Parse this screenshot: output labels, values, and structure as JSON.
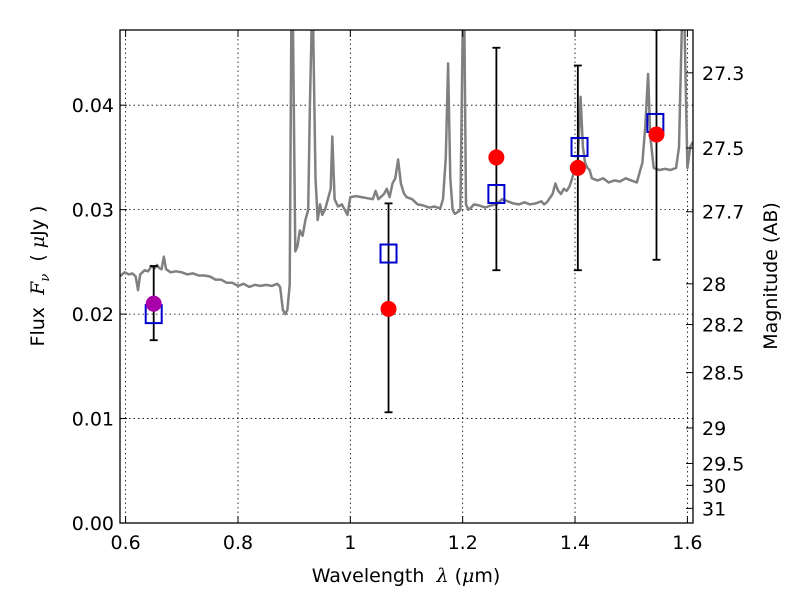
{
  "chart_data": {
    "type": "scatter",
    "xlabel": "Wavelength  λ (μm)",
    "ylabel": "Flux  Fν  ( μJy )",
    "y2label": "Magnitude (AB)",
    "xlim": [
      0.59,
      1.61
    ],
    "ylim": [
      0.0,
      0.0472
    ],
    "grid": true,
    "x_ticks": [
      0.6,
      0.8,
      1.0,
      1.2,
      1.4,
      1.6
    ],
    "x_tick_labels": [
      "0.6",
      "0.8",
      "1",
      "1.2",
      "1.4",
      "1.6"
    ],
    "y_ticks": [
      0.0,
      0.01,
      0.02,
      0.03,
      0.04
    ],
    "y_tick_labels": [
      "0.00",
      "0.01",
      "0.02",
      "0.03",
      "0.04"
    ],
    "mag_ticks": [
      {
        "label": "27.3",
        "flux": 0.0431
      },
      {
        "label": "27.5",
        "flux": 0.0359
      },
      {
        "label": "27.7",
        "flux": 0.0298
      },
      {
        "label": "28",
        "flux": 0.0229
      },
      {
        "label": "28.2",
        "flux": 0.019
      },
      {
        "label": "28.5",
        "flux": 0.0144
      },
      {
        "label": "29",
        "flux": 0.0091
      },
      {
        "label": "29.5",
        "flux": 0.0057
      },
      {
        "label": "30",
        "flux": 0.0036
      },
      {
        "label": "31",
        "flux": 0.0014
      }
    ],
    "series": [
      {
        "kind": "line",
        "color": "#808080",
        "points": [
          [
            0.59,
            0.0236
          ],
          [
            0.598,
            0.024
          ],
          [
            0.606,
            0.0238
          ],
          [
            0.612,
            0.0239
          ],
          [
            0.618,
            0.0236
          ],
          [
            0.622,
            0.0223
          ],
          [
            0.626,
            0.0238
          ],
          [
            0.634,
            0.0242
          ],
          [
            0.64,
            0.0241
          ],
          [
            0.646,
            0.0246
          ],
          [
            0.652,
            0.0244
          ],
          [
            0.656,
            0.0247
          ],
          [
            0.66,
            0.0244
          ],
          [
            0.664,
            0.0243
          ],
          [
            0.668,
            0.0255
          ],
          [
            0.672,
            0.0243
          ],
          [
            0.68,
            0.024
          ],
          [
            0.69,
            0.0241
          ],
          [
            0.7,
            0.024
          ],
          [
            0.71,
            0.0238
          ],
          [
            0.72,
            0.0239
          ],
          [
            0.73,
            0.0237
          ],
          [
            0.74,
            0.0237
          ],
          [
            0.75,
            0.0236
          ],
          [
            0.76,
            0.0233
          ],
          [
            0.77,
            0.0233
          ],
          [
            0.78,
            0.023
          ],
          [
            0.79,
            0.023
          ],
          [
            0.8,
            0.0227
          ],
          [
            0.81,
            0.0229
          ],
          [
            0.82,
            0.0226
          ],
          [
            0.83,
            0.0228
          ],
          [
            0.84,
            0.0227
          ],
          [
            0.85,
            0.0228
          ],
          [
            0.86,
            0.0227
          ],
          [
            0.87,
            0.0229
          ],
          [
            0.875,
            0.0226
          ],
          [
            0.88,
            0.0204
          ],
          [
            0.884,
            0.02
          ],
          [
            0.888,
            0.0204
          ],
          [
            0.892,
            0.0228
          ],
          [
            0.895,
            0.0473
          ],
          [
            0.898,
            0.0473
          ],
          [
            0.902,
            0.026
          ],
          [
            0.906,
            0.0265
          ],
          [
            0.91,
            0.028
          ],
          [
            0.915,
            0.0275
          ],
          [
            0.92,
            0.029
          ],
          [
            0.925,
            0.03
          ],
          [
            0.928,
            0.04
          ],
          [
            0.931,
            0.0473
          ],
          [
            0.934,
            0.0473
          ],
          [
            0.938,
            0.033
          ],
          [
            0.942,
            0.029
          ],
          [
            0.946,
            0.0305
          ],
          [
            0.95,
            0.0295
          ],
          [
            0.955,
            0.03
          ],
          [
            0.96,
            0.031
          ],
          [
            0.965,
            0.032
          ],
          [
            0.968,
            0.037
          ],
          [
            0.972,
            0.031
          ],
          [
            0.978,
            0.0303
          ],
          [
            0.985,
            0.0305
          ],
          [
            0.99,
            0.03
          ],
          [
            0.995,
            0.0295
          ],
          [
            1.0,
            0.0312
          ],
          [
            1.01,
            0.0313
          ],
          [
            1.02,
            0.0312
          ],
          [
            1.03,
            0.0311
          ],
          [
            1.04,
            0.031
          ],
          [
            1.045,
            0.0318
          ],
          [
            1.05,
            0.031
          ],
          [
            1.06,
            0.0315
          ],
          [
            1.065,
            0.032
          ],
          [
            1.07,
            0.0312
          ],
          [
            1.075,
            0.0325
          ],
          [
            1.08,
            0.033
          ],
          [
            1.085,
            0.0348
          ],
          [
            1.09,
            0.0325
          ],
          [
            1.095,
            0.0316
          ],
          [
            1.1,
            0.0312
          ],
          [
            1.11,
            0.031
          ],
          [
            1.12,
            0.0305
          ],
          [
            1.13,
            0.0304
          ],
          [
            1.14,
            0.0302
          ],
          [
            1.15,
            0.0303
          ],
          [
            1.16,
            0.0301
          ],
          [
            1.165,
            0.031
          ],
          [
            1.17,
            0.035
          ],
          [
            1.174,
            0.044
          ],
          [
            1.178,
            0.033
          ],
          [
            1.182,
            0.03
          ],
          [
            1.186,
            0.0296
          ],
          [
            1.192,
            0.0298
          ],
          [
            1.196,
            0.03
          ],
          [
            1.2,
            0.0473
          ],
          [
            1.203,
            0.0473
          ],
          [
            1.206,
            0.0305
          ],
          [
            1.21,
            0.03
          ],
          [
            1.215,
            0.0302
          ],
          [
            1.22,
            0.0305
          ],
          [
            1.23,
            0.0304
          ],
          [
            1.24,
            0.0302
          ],
          [
            1.25,
            0.0304
          ],
          [
            1.26,
            0.0305
          ],
          [
            1.27,
            0.031
          ],
          [
            1.28,
            0.0308
          ],
          [
            1.29,
            0.0306
          ],
          [
            1.3,
            0.0305
          ],
          [
            1.31,
            0.0307
          ],
          [
            1.32,
            0.0305
          ],
          [
            1.33,
            0.0306
          ],
          [
            1.34,
            0.0308
          ],
          [
            1.345,
            0.0305
          ],
          [
            1.35,
            0.0307
          ],
          [
            1.36,
            0.0315
          ],
          [
            1.365,
            0.0325
          ],
          [
            1.37,
            0.0318
          ],
          [
            1.375,
            0.0315
          ],
          [
            1.38,
            0.032
          ],
          [
            1.385,
            0.0318
          ],
          [
            1.39,
            0.0322
          ],
          [
            1.395,
            0.033
          ],
          [
            1.4,
            0.034
          ],
          [
            1.405,
            0.0345
          ],
          [
            1.41,
            0.0408
          ],
          [
            1.414,
            0.036
          ],
          [
            1.418,
            0.0345
          ],
          [
            1.422,
            0.034
          ],
          [
            1.426,
            0.0338
          ],
          [
            1.43,
            0.033
          ],
          [
            1.44,
            0.0328
          ],
          [
            1.45,
            0.033
          ],
          [
            1.46,
            0.0326
          ],
          [
            1.47,
            0.0328
          ],
          [
            1.48,
            0.0327
          ],
          [
            1.49,
            0.033
          ],
          [
            1.5,
            0.0328
          ],
          [
            1.51,
            0.0326
          ],
          [
            1.52,
            0.0345
          ],
          [
            1.525,
            0.038
          ],
          [
            1.53,
            0.043
          ],
          [
            1.534,
            0.037
          ],
          [
            1.54,
            0.034
          ],
          [
            1.55,
            0.0338
          ],
          [
            1.56,
            0.0339
          ],
          [
            1.57,
            0.0338
          ],
          [
            1.575,
            0.0339
          ],
          [
            1.58,
            0.034
          ],
          [
            1.585,
            0.036
          ],
          [
            1.59,
            0.0473
          ],
          [
            1.595,
            0.0473
          ],
          [
            1.6,
            0.034
          ],
          [
            1.605,
            0.036
          ],
          [
            1.61,
            0.0365
          ]
        ]
      },
      {
        "kind": "errorbar",
        "color": "#000000",
        "points": [
          {
            "x": 0.65,
            "y": 0.021,
            "ylo": 0.0175,
            "yhi": 0.0246
          },
          {
            "x": 1.068,
            "y": 0.0205,
            "ylo": 0.0106,
            "yhi": 0.0306
          },
          {
            "x": 1.26,
            "y": 0.035,
            "ylo": 0.0242,
            "yhi": 0.0455
          },
          {
            "x": 1.405,
            "y": 0.034,
            "ylo": 0.0242,
            "yhi": 0.0438
          },
          {
            "x": 1.545,
            "y": 0.0372,
            "ylo": 0.0252,
            "yhi": 0.0472
          }
        ]
      },
      {
        "kind": "square",
        "color": "#0000cc",
        "points": [
          [
            0.65,
            0.02
          ],
          [
            1.068,
            0.0258
          ],
          [
            1.26,
            0.0315
          ],
          [
            1.408,
            0.036
          ],
          [
            1.543,
            0.0383
          ]
        ]
      },
      {
        "kind": "circle",
        "color": "#ff0000",
        "points": [
          [
            1.068,
            0.0205
          ],
          [
            1.26,
            0.035
          ],
          [
            1.405,
            0.034
          ],
          [
            1.545,
            0.0372
          ]
        ]
      },
      {
        "kind": "circle",
        "color": "#aa00aa",
        "points": [
          [
            0.65,
            0.021
          ]
        ]
      }
    ]
  }
}
